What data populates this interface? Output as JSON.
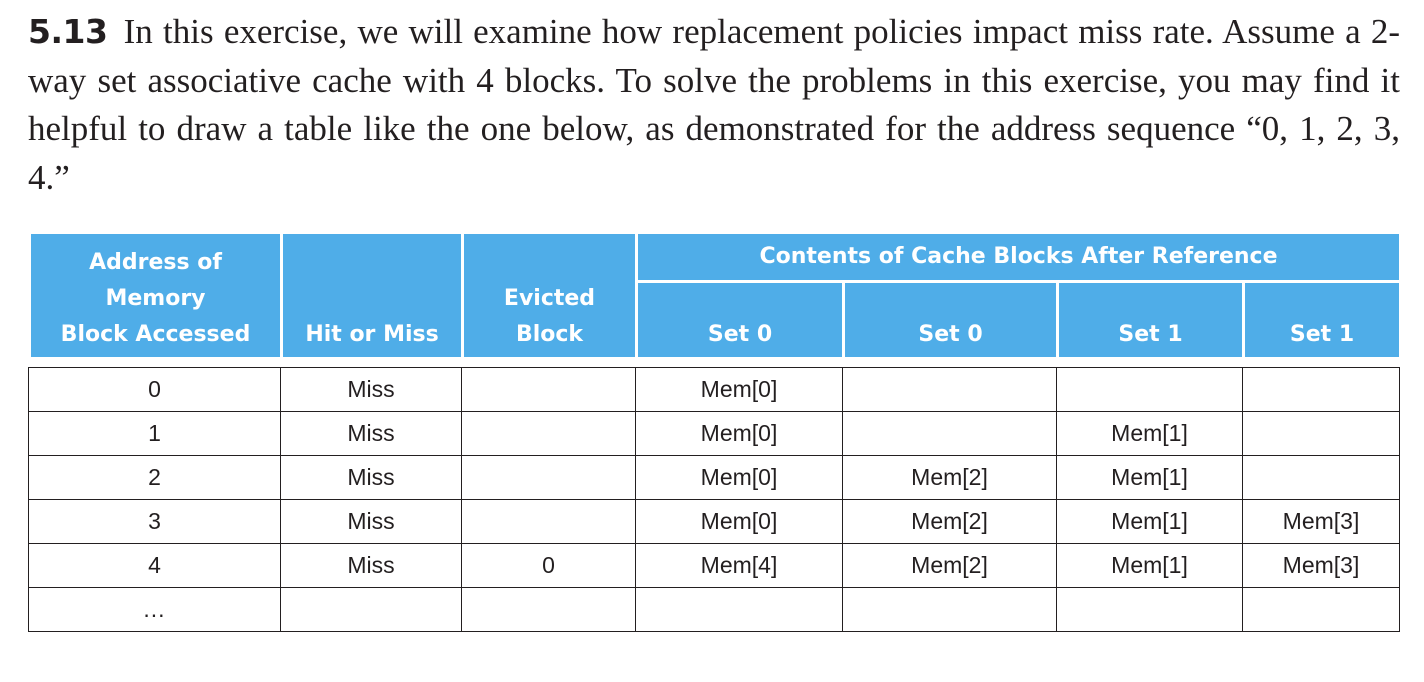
{
  "problem": {
    "number": "5.13",
    "text": "In this exercise, we will examine how replacement policies impact miss rate. Assume a 2-way set associative cache with 4 blocks. To solve the problems in this exercise, you may find it helpful to draw a table like the one below, as demonstrated for the address sequence “0, 1, 2, 3, 4.”"
  },
  "table": {
    "headers": {
      "address": [
        "Address of",
        "Memory",
        "Block Accessed"
      ],
      "hit_or_miss": "Hit or Miss",
      "evicted": [
        "Evicted",
        "Block"
      ],
      "contents_group": "Contents of Cache Blocks After Reference",
      "sets": [
        "Set 0",
        "Set 0",
        "Set 1",
        "Set 1"
      ]
    },
    "rows": [
      [
        "0",
        "Miss",
        "",
        "Mem[0]",
        "",
        "",
        ""
      ],
      [
        "1",
        "Miss",
        "",
        "Mem[0]",
        "",
        "Mem[1]",
        ""
      ],
      [
        "2",
        "Miss",
        "",
        "Mem[0]",
        "Mem[2]",
        "Mem[1]",
        ""
      ],
      [
        "3",
        "Miss",
        "",
        "Mem[0]",
        "Mem[2]",
        "Mem[1]",
        "Mem[3]"
      ],
      [
        "4",
        "Miss",
        "0",
        "Mem[4]",
        "Mem[2]",
        "Mem[1]",
        "Mem[3]"
      ],
      [
        "...",
        "",
        "",
        "",
        "",
        "",
        ""
      ]
    ]
  }
}
